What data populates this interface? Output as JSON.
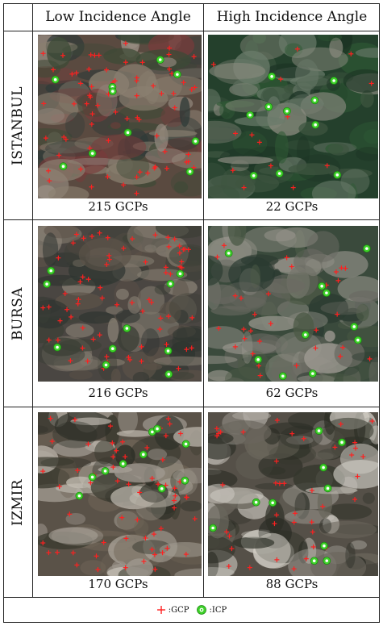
{
  "columns": [
    "Low Incidence Angle",
    "High Incidence Angle"
  ],
  "rows": [
    {
      "label": "ISTANBUL",
      "low_caption": "215 GCPs",
      "high_caption": "22 GCPs"
    },
    {
      "label": "BURSA",
      "low_caption": "216 GCPs",
      "high_caption": "62 GCPs"
    },
    {
      "label": "IZMIR",
      "low_caption": "170 GCPs",
      "high_caption": "88 GCPs"
    }
  ],
  "legend": {
    "gcp_label": ":GCP",
    "icp_label": ":ICP"
  },
  "colors": {
    "gcp": "#ff2020",
    "icp": "#3fd22a"
  },
  "icons": {
    "gcp": "red-plus-icon",
    "icp": "green-ring-icon"
  }
}
